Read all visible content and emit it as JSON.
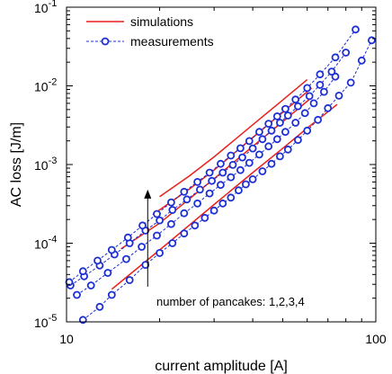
{
  "chart_data": {
    "type": "line",
    "title": "",
    "xlabel": "current amplitude [A]",
    "ylabel": "AC loss [J/m]",
    "xscale": "log",
    "yscale": "log",
    "xlim": [
      10,
      100
    ],
    "ylim": [
      1e-05,
      0.1
    ],
    "grid": false,
    "legend_position": "top-left",
    "x_ticks": [
      {
        "value": 10,
        "label": "10"
      },
      {
        "value": 100,
        "label": "100"
      }
    ],
    "y_ticks": [
      {
        "value": 1e-05,
        "base": "10",
        "exp": "-5"
      },
      {
        "value": 0.0001,
        "base": "10",
        "exp": "-4"
      },
      {
        "value": 0.001,
        "base": "10",
        "exp": "-3"
      },
      {
        "value": 0.01,
        "base": "10",
        "exp": "-2"
      },
      {
        "value": 0.1,
        "base": "10",
        "exp": "-1"
      }
    ],
    "legend": [
      {
        "label": "simulations",
        "color": "#e8211c",
        "style": "solid"
      },
      {
        "label": "measurements",
        "color": "#1c2fd4",
        "style": "dashed-circle"
      }
    ],
    "annotation": {
      "text": "number of pancakes: 1,2,3,4",
      "arrow_x": 18.3,
      "arrow_from_y": 2.8e-05,
      "arrow_to_y": 0.00048
    },
    "series": [
      {
        "kind": "simulation",
        "color": "#e8211c",
        "x": [
          14,
          20,
          30,
          40,
          50,
          60,
          75
        ],
        "y": [
          2.6e-05,
          8.2e-05,
          0.00031,
          0.00079,
          0.0016,
          0.0029,
          0.0058
        ]
      },
      {
        "kind": "simulation",
        "color": "#e8211c",
        "x": [
          15,
          20,
          30,
          40,
          50,
          62
        ],
        "y": [
          8.5e-05,
          0.00018,
          0.00066,
          0.0017,
          0.0035,
          0.0071
        ]
      },
      {
        "kind": "simulation",
        "color": "#e8211c",
        "x": [
          19,
          25,
          30,
          40,
          50,
          62
        ],
        "y": [
          0.00023,
          0.00049,
          0.00085,
          0.0022,
          0.0046,
          0.0094
        ]
      },
      {
        "kind": "simulation",
        "color": "#e8211c",
        "x": [
          20,
          25,
          30,
          40,
          50,
          60
        ],
        "y": [
          0.00039,
          0.00072,
          0.00125,
          0.0032,
          0.0066,
          0.012
        ]
      },
      {
        "kind": "measurement",
        "color": "#1c2fd4",
        "x": [
          11.3,
          12.8,
          14,
          16,
          18,
          20,
          22,
          24,
          26,
          28,
          30,
          32,
          34,
          36,
          38,
          40,
          43,
          46,
          49,
          52,
          56,
          60,
          65,
          70,
          76,
          83,
          90,
          97
        ],
        "y": [
          1.06e-05,
          1.55e-05,
          2.2e-05,
          3.4e-05,
          5.3e-05,
          7.5e-05,
          0.0001,
          0.000133,
          0.000168,
          0.00021,
          0.00026,
          0.00032,
          0.00038,
          0.00047,
          0.00056,
          0.00065,
          0.00082,
          0.00102,
          0.00127,
          0.00155,
          0.00205,
          0.0027,
          0.0037,
          0.0052,
          0.0075,
          0.011,
          0.021,
          0.038
        ]
      },
      {
        "kind": "measurement",
        "color": "#1c2fd4",
        "x": [
          10.8,
          12,
          13.6,
          15.6,
          17.5,
          19.6,
          21.8,
          24,
          26.5,
          29,
          31.5,
          34,
          36.5,
          39,
          42,
          45,
          48,
          51,
          55,
          59,
          63,
          68,
          74
        ],
        "y": [
          2.2e-05,
          2.9e-05,
          4.2e-05,
          6.3e-05,
          9e-05,
          0.000125,
          0.000175,
          0.00024,
          0.00032,
          0.00043,
          0.00055,
          0.00069,
          0.00085,
          0.00105,
          0.00134,
          0.0017,
          0.0021,
          0.0026,
          0.0034,
          0.0045,
          0.006,
          0.0084,
          0.0131
        ]
      },
      {
        "kind": "measurement",
        "color": "#1c2fd4",
        "x": [
          10.3,
          11.4,
          12.8,
          14.3,
          16,
          18,
          20,
          22,
          24.5,
          27,
          29.5,
          32,
          34.5,
          37,
          40,
          43,
          46,
          49,
          52,
          56,
          61,
          66,
          72,
          80
        ],
        "y": [
          2.9e-05,
          3.8e-05,
          5.2e-05,
          7.2e-05,
          0.0001,
          0.000145,
          0.000195,
          0.000265,
          0.00036,
          0.00048,
          0.00062,
          0.00079,
          0.00099,
          0.00123,
          0.0016,
          0.0021,
          0.0027,
          0.0034,
          0.0042,
          0.0055,
          0.0074,
          0.0103,
          0.0152,
          0.0265
        ]
      },
      {
        "kind": "measurement",
        "color": "#1c2fd4",
        "x": [
          10.2,
          11.3,
          12.6,
          14,
          15.8,
          17.6,
          19.6,
          21.8,
          24,
          26.5,
          29,
          31.5,
          34,
          36.5,
          39,
          42,
          45,
          48,
          51,
          55,
          60,
          66,
          74,
          86
        ],
        "y": [
          3.2e-05,
          4.4e-05,
          6e-05,
          8.2e-05,
          0.000118,
          0.000168,
          0.000235,
          0.00033,
          0.00045,
          0.0006,
          0.00079,
          0.00102,
          0.0013,
          0.00161,
          0.00199,
          0.0026,
          0.0033,
          0.0041,
          0.0051,
          0.0067,
          0.0094,
          0.014,
          0.023,
          0.052
        ]
      }
    ]
  }
}
